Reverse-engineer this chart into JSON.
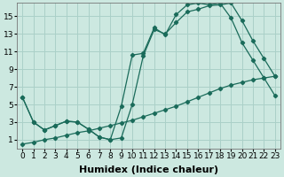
{
  "bg_color": "#cce8e0",
  "grid_color": "#aad0c8",
  "line_color": "#1a6b5a",
  "xlabel": "Humidex (Indice chaleur)",
  "xlabel_fontsize": 8,
  "tick_fontsize": 6.5,
  "xlim": [
    -0.5,
    23.5
  ],
  "ylim": [
    0,
    16.5
  ],
  "xticks": [
    0,
    1,
    2,
    3,
    4,
    5,
    6,
    7,
    8,
    9,
    10,
    11,
    12,
    13,
    14,
    15,
    16,
    17,
    18,
    19,
    20,
    21,
    22,
    23
  ],
  "yticks": [
    1,
    3,
    5,
    7,
    9,
    11,
    13,
    15
  ],
  "line1_x": [
    0,
    1,
    2,
    3,
    4,
    5,
    6,
    7,
    8,
    9,
    10,
    11,
    12,
    13,
    14,
    15,
    16,
    17,
    18,
    19,
    20,
    21,
    22,
    23
  ],
  "line1_y": [
    5.8,
    3.0,
    2.1,
    2.6,
    3.1,
    3.0,
    2.2,
    1.3,
    1.0,
    1.2,
    5.0,
    10.5,
    13.5,
    13.0,
    14.3,
    15.5,
    15.8,
    16.2,
    16.3,
    16.5,
    14.5,
    12.2,
    10.2,
    8.2
  ],
  "line2_x": [
    0,
    1,
    2,
    3,
    4,
    5,
    6,
    7,
    8,
    9,
    10,
    11,
    12,
    13,
    14,
    15,
    16,
    17,
    18,
    19,
    20,
    21,
    22,
    23
  ],
  "line2_y": [
    5.8,
    3.0,
    2.1,
    2.6,
    3.1,
    3.0,
    2.2,
    1.3,
    1.0,
    4.8,
    10.6,
    10.8,
    13.7,
    12.9,
    15.2,
    16.3,
    16.5,
    16.3,
    16.5,
    14.8,
    12.0,
    10.0,
    8.0,
    6.0
  ],
  "line3_x": [
    0,
    1,
    2,
    3,
    4,
    5,
    6,
    7,
    8,
    9,
    10,
    11,
    12,
    13,
    14,
    15,
    16,
    17,
    18,
    19,
    20,
    21,
    22,
    23
  ],
  "line3_y": [
    0.5,
    0.7,
    1.0,
    1.2,
    1.5,
    1.8,
    2.0,
    2.3,
    2.6,
    2.9,
    3.2,
    3.6,
    4.0,
    4.4,
    4.8,
    5.3,
    5.8,
    6.3,
    6.8,
    7.2,
    7.5,
    7.8,
    8.0,
    8.2
  ]
}
